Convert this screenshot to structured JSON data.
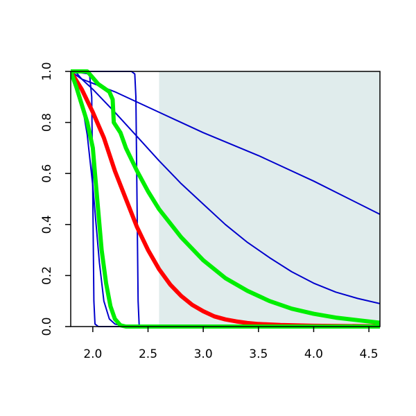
{
  "chart_data": {
    "type": "line",
    "title": "",
    "xlabel": "",
    "ylabel": "",
    "xlim": [
      1.8,
      4.6
    ],
    "ylim": [
      0.0,
      1.0
    ],
    "x_ticks": [
      2.0,
      2.5,
      3.0,
      3.5,
      4.0,
      4.5
    ],
    "x_tick_labels": [
      "2.0",
      "2.5",
      "3.0",
      "3.5",
      "4.0",
      "4.5"
    ],
    "y_ticks": [
      0.0,
      0.2,
      0.4,
      0.6,
      0.8,
      1.0
    ],
    "y_tick_labels": [
      "0.0",
      "0.2",
      "0.4",
      "0.6",
      "0.8",
      "1.0"
    ],
    "grid": false,
    "legend": "none",
    "shaded_region": {
      "x_from": 2.6,
      "x_to": 4.6,
      "color": "#e0ecec"
    },
    "series": [
      {
        "color": "#0000cc",
        "width": "thin",
        "points": [
          [
            1.8,
            1.0
          ],
          [
            1.97,
            0.99
          ],
          [
            1.99,
            0.9
          ],
          [
            2.0,
            0.5
          ],
          [
            2.01,
            0.1
          ],
          [
            2.02,
            0.01
          ],
          [
            2.05,
            0.0
          ],
          [
            4.6,
            0.0
          ]
        ]
      },
      {
        "color": "#0000cc",
        "width": "thin",
        "points": [
          [
            1.8,
            1.0
          ],
          [
            2.35,
            1.0
          ],
          [
            2.38,
            0.99
          ],
          [
            2.39,
            0.9
          ],
          [
            2.4,
            0.5
          ],
          [
            2.41,
            0.1
          ],
          [
            2.42,
            0.0
          ],
          [
            4.6,
            0.0
          ]
        ]
      },
      {
        "color": "#0000cc",
        "width": "thin",
        "points": [
          [
            1.8,
            1.0
          ],
          [
            1.85,
            0.95
          ],
          [
            1.9,
            0.88
          ],
          [
            1.95,
            0.75
          ],
          [
            2.0,
            0.55
          ],
          [
            2.03,
            0.4
          ],
          [
            2.06,
            0.25
          ],
          [
            2.1,
            0.1
          ],
          [
            2.15,
            0.03
          ],
          [
            2.2,
            0.01
          ],
          [
            2.3,
            0.0
          ],
          [
            4.6,
            0.0
          ]
        ]
      },
      {
        "color": "#0000cc",
        "width": "thin",
        "points": [
          [
            1.8,
            1.0
          ],
          [
            1.85,
            0.995
          ],
          [
            1.9,
            0.97
          ],
          [
            2.0,
            0.93
          ],
          [
            2.2,
            0.84
          ],
          [
            2.4,
            0.745
          ],
          [
            2.6,
            0.65
          ],
          [
            2.8,
            0.56
          ],
          [
            3.0,
            0.48
          ],
          [
            3.2,
            0.4
          ],
          [
            3.4,
            0.33
          ],
          [
            3.6,
            0.27
          ],
          [
            3.8,
            0.215
          ],
          [
            4.0,
            0.17
          ],
          [
            4.2,
            0.135
          ],
          [
            4.4,
            0.11
          ],
          [
            4.6,
            0.09
          ]
        ]
      },
      {
        "color": "#0000cc",
        "width": "thin",
        "points": [
          [
            1.8,
            1.0
          ],
          [
            1.9,
            0.97
          ],
          [
            2.2,
            0.92
          ],
          [
            2.6,
            0.84
          ],
          [
            3.0,
            0.76
          ],
          [
            3.5,
            0.67
          ],
          [
            4.0,
            0.57
          ],
          [
            4.6,
            0.44
          ]
        ]
      },
      {
        "color": "#ff0000",
        "width": "thick",
        "points": [
          [
            1.8,
            1.0
          ],
          [
            1.9,
            0.93
          ],
          [
            2.0,
            0.84
          ],
          [
            2.1,
            0.74
          ],
          [
            2.2,
            0.61
          ],
          [
            2.3,
            0.5
          ],
          [
            2.4,
            0.39
          ],
          [
            2.5,
            0.3
          ],
          [
            2.6,
            0.225
          ],
          [
            2.7,
            0.165
          ],
          [
            2.8,
            0.12
          ],
          [
            2.9,
            0.085
          ],
          [
            3.0,
            0.06
          ],
          [
            3.1,
            0.04
          ],
          [
            3.2,
            0.028
          ],
          [
            3.3,
            0.02
          ],
          [
            3.4,
            0.014
          ],
          [
            3.5,
            0.01
          ],
          [
            3.7,
            0.006
          ],
          [
            4.0,
            0.003
          ],
          [
            4.6,
            0.001
          ]
        ]
      },
      {
        "color": "#00ee00",
        "width": "thick",
        "points": [
          [
            1.8,
            1.0
          ],
          [
            1.85,
            0.94
          ],
          [
            1.9,
            0.87
          ],
          [
            1.95,
            0.8
          ],
          [
            2.0,
            0.7
          ],
          [
            2.02,
            0.6
          ],
          [
            2.05,
            0.45
          ],
          [
            2.08,
            0.3
          ],
          [
            2.12,
            0.17
          ],
          [
            2.16,
            0.08
          ],
          [
            2.2,
            0.03
          ],
          [
            2.25,
            0.005
          ],
          [
            2.3,
            0.0
          ],
          [
            4.6,
            0.0
          ]
        ]
      },
      {
        "color": "#00ee00",
        "width": "thick",
        "points": [
          [
            1.8,
            1.0
          ],
          [
            1.95,
            1.0
          ],
          [
            2.0,
            0.975
          ],
          [
            2.05,
            0.95
          ],
          [
            2.1,
            0.935
          ],
          [
            2.15,
            0.92
          ],
          [
            2.18,
            0.89
          ],
          [
            2.19,
            0.8
          ],
          [
            2.25,
            0.76
          ],
          [
            2.3,
            0.7
          ],
          [
            2.4,
            0.61
          ],
          [
            2.5,
            0.53
          ],
          [
            2.6,
            0.46
          ],
          [
            2.8,
            0.35
          ],
          [
            3.0,
            0.26
          ],
          [
            3.2,
            0.19
          ],
          [
            3.4,
            0.14
          ],
          [
            3.6,
            0.1
          ],
          [
            3.8,
            0.07
          ],
          [
            4.0,
            0.05
          ],
          [
            4.2,
            0.035
          ],
          [
            4.4,
            0.025
          ],
          [
            4.6,
            0.015
          ]
        ]
      }
    ]
  }
}
